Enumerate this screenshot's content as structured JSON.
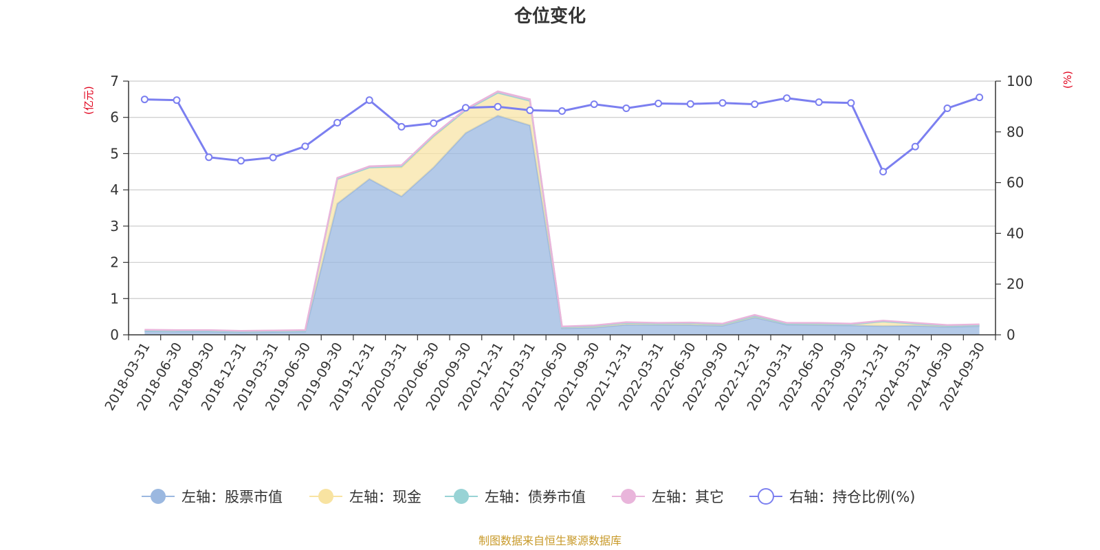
{
  "chart_data": {
    "type": "area",
    "title": "仓位变化",
    "left_unit": "(亿元)",
    "right_unit": "(%)",
    "left_ylim": [
      0,
      7
    ],
    "left_ticks": [
      "0",
      "1",
      "2",
      "3",
      "4",
      "5",
      "6",
      "7"
    ],
    "right_ylim": [
      0,
      100
    ],
    "right_ticks": [
      "0",
      "20",
      "40",
      "60",
      "80",
      "100"
    ],
    "categories": [
      "2018-03-31",
      "2018-06-30",
      "2018-09-30",
      "2018-12-31",
      "2019-03-31",
      "2019-06-30",
      "2019-09-30",
      "2019-12-31",
      "2020-03-31",
      "2020-06-30",
      "2020-09-30",
      "2020-12-31",
      "2021-03-31",
      "2021-06-30",
      "2021-09-30",
      "2021-12-31",
      "2022-03-31",
      "2022-06-30",
      "2022-09-30",
      "2022-12-31",
      "2023-03-31",
      "2023-06-30",
      "2023-09-30",
      "2023-12-31",
      "2024-03-31",
      "2024-06-30",
      "2024-09-30"
    ],
    "stack_series": [
      {
        "name": "左轴：股票市值",
        "color": "#9bb8e0",
        "values": [
          0.1,
          0.09,
          0.09,
          0.07,
          0.08,
          0.09,
          3.62,
          4.3,
          3.82,
          4.62,
          5.57,
          6.05,
          5.78,
          0.18,
          0.2,
          0.28,
          0.27,
          0.27,
          0.25,
          0.48,
          0.28,
          0.27,
          0.26,
          0.24,
          0.25,
          0.22,
          0.24
        ]
      },
      {
        "name": "左轴：现金",
        "color": "#f8e3a1",
        "values": [
          0.02,
          0.02,
          0.02,
          0.02,
          0.02,
          0.02,
          0.68,
          0.32,
          0.8,
          0.84,
          0.63,
          0.63,
          0.68,
          0.03,
          0.04,
          0.05,
          0.04,
          0.05,
          0.04,
          0.04,
          0.03,
          0.04,
          0.03,
          0.13,
          0.06,
          0.03,
          0.03
        ]
      },
      {
        "name": "左轴：债券市值",
        "color": "#98d3d5",
        "values": [
          0,
          0,
          0,
          0,
          0,
          0,
          0,
          0,
          0.03,
          0.03,
          0,
          0,
          0,
          0,
          0,
          0,
          0,
          0,
          0,
          0,
          0,
          0,
          0,
          0,
          0,
          0,
          0
        ]
      },
      {
        "name": "左轴：其它",
        "color": "#e9b5db",
        "values": [
          0.02,
          0.02,
          0.02,
          0.02,
          0.02,
          0.02,
          0.03,
          0.03,
          0.03,
          0.03,
          0.03,
          0.04,
          0.04,
          0.02,
          0.02,
          0.02,
          0.02,
          0.02,
          0.02,
          0.03,
          0.02,
          0.02,
          0.02,
          0.02,
          0.02,
          0.02,
          0.02
        ]
      }
    ],
    "line_series": {
      "name": "右轴：持仓比例(%)",
      "color": "#7b7ff0",
      "values": [
        92.8,
        92.5,
        70.0,
        68.6,
        69.9,
        74.3,
        83.6,
        92.5,
        82.0,
        83.4,
        89.5,
        89.9,
        88.5,
        88.2,
        90.9,
        89.3,
        91.2,
        91.0,
        91.4,
        90.9,
        93.3,
        91.7,
        91.4,
        64.3,
        74.2,
        89.3,
        93.6
      ]
    },
    "source": "制图数据来自恒生聚源数据库"
  }
}
